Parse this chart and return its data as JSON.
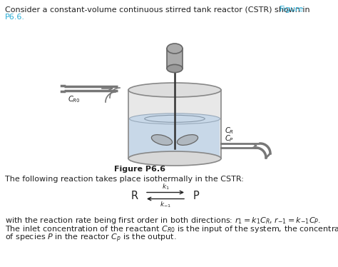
{
  "bg_color": "#ffffff",
  "text_color": "#222222",
  "link_color": "#29ABD4",
  "figure_label": "Figure P6.6",
  "tank_face": "#e8e8e8",
  "tank_edge": "#888888",
  "water_face": "#c8d8e8",
  "water_edge": "#99aabb",
  "pipe_color": "#777777",
  "motor_face": "#aaaaaa",
  "motor_edge": "#666666",
  "blade_face": "#b0b8c0",
  "blade_edge": "#666666",
  "top_line1": "Consider a constant-volume continuous stirred tank reactor (CSTR) shown in ",
  "top_link": "Figure",
  "top_line2": "P6.6.",
  "reaction_intro": "The following reaction takes place isothermally in the CSTR:",
  "bot_line1_a": "with the reaction rate being first order in both directions: ",
  "bot_line2_a": "The inlet concentration of the reactant ",
  "bot_line3": "of species ",
  "fontsize": 8.0
}
